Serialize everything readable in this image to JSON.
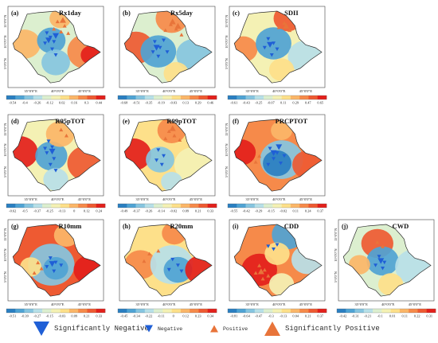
{
  "colors": {
    "scale": [
      "#2a7fc1",
      "#4fa3d4",
      "#86c5e0",
      "#b7e0e8",
      "#dcefcf",
      "#f4f1b4",
      "#fde08a",
      "#fbb668",
      "#f68a4a",
      "#ee5a32",
      "#e3201b"
    ],
    "border": "#2b2b2b",
    "neg_triangle": "#1f5fd6",
    "pos_triangle": "#e8743a"
  },
  "axes": {
    "x_ticks": [
      "35°0'0\"E",
      "40°0'0\"E",
      "45°0'0\"E"
    ],
    "y_ticks": [
      "15°0'0\"N",
      "10°0'0\"N",
      "5°0'0\"N"
    ]
  },
  "panels": [
    {
      "letter": "(a)",
      "title": "Rx1day",
      "ticks": [
        "-0.54",
        "-0.4",
        "-0.26",
        "-0.12",
        "0.02",
        "0.16",
        "0.3",
        "0.44"
      ],
      "pattern": "rx1day",
      "show_y": true
    },
    {
      "letter": "(b)",
      "title": "Rx5day",
      "ticks": [
        "-0.68",
        "-0.51",
        "-0.35",
        "-0.19",
        "-0.03",
        "0.13",
        "0.29",
        "0.46"
      ],
      "pattern": "rx5day",
      "show_y": false
    },
    {
      "letter": "(c)",
      "title": "SDII",
      "ticks": [
        "-0.61",
        "-0.43",
        "-0.25",
        "-0.07",
        "0.11",
        "0.29",
        "0.47",
        "0.65"
      ],
      "pattern": "sdii",
      "show_y": true
    },
    {
      "letter": "(d)",
      "title": "R95pTOT",
      "ticks": [
        "-0.62",
        "-0.5",
        "-0.37",
        "-0.25",
        "-0.13",
        "0",
        "0.12",
        "0.24"
      ],
      "pattern": "r95",
      "show_y": true
    },
    {
      "letter": "(e)",
      "title": "R99pTOT",
      "ticks": [
        "-0.49",
        "-0.37",
        "-0.26",
        "-0.14",
        "-0.02",
        "0.09",
        "0.21",
        "0.33"
      ],
      "pattern": "r99",
      "show_y": false
    },
    {
      "letter": "(f)",
      "title": "PRCPTOT",
      "ticks": [
        "-0.55",
        "-0.42",
        "-0.29",
        "-0.15",
        "-0.02",
        "0.11",
        "0.24",
        "0.37"
      ],
      "pattern": "prcptot",
      "show_y": true
    },
    {
      "letter": "(g)",
      "title": "R10mm",
      "ticks": [
        "-0.51",
        "-0.39",
        "-0.27",
        "-0.15",
        "-0.03",
        "0.09",
        "0.21",
        "0.33"
      ],
      "pattern": "r10",
      "show_y": true
    },
    {
      "letter": "(h)",
      "title": "R20mm",
      "ticks": [
        "-0.45",
        "-0.34",
        "-0.22",
        "-0.11",
        "0",
        "0.12",
        "0.23",
        "0.34"
      ],
      "pattern": "r20",
      "show_y": false
    },
    {
      "letter": "(i)",
      "title": "CDD",
      "ticks": [
        "-0.81",
        "-0.64",
        "-0.47",
        "-0.3",
        "-0.13",
        "0.04",
        "0.21",
        "0.37"
      ],
      "pattern": "cdd",
      "show_y": false
    },
    {
      "letter": "(j)",
      "title": "CWD",
      "ticks": [
        "-0.42",
        "-0.31",
        "-0.21",
        "-0.1",
        "0.01",
        "0.11",
        "0.22",
        "0.31"
      ],
      "pattern": "cwd",
      "show_y": true
    }
  ],
  "legend": [
    {
      "label": "Significantly Negative",
      "kind": "neg",
      "size": "large"
    },
    {
      "label": "Negative",
      "kind": "neg",
      "size": "small"
    },
    {
      "label": "Positive",
      "kind": "pos",
      "size": "small"
    },
    {
      "label": "Significantly Positive",
      "kind": "pos",
      "size": "large"
    }
  ]
}
